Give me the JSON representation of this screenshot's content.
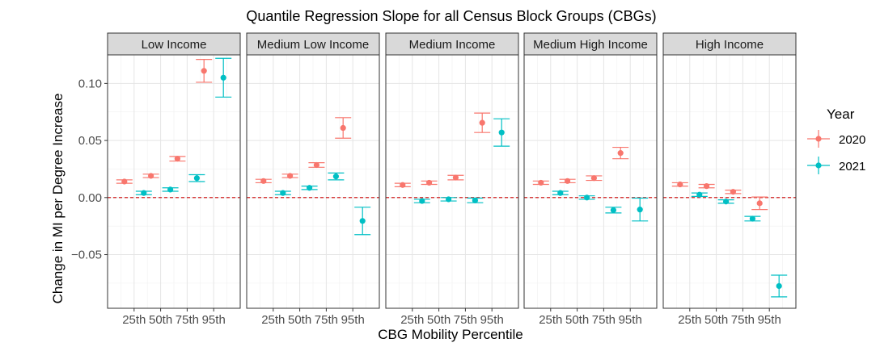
{
  "chart_data": {
    "type": "scatter",
    "title": "Quantile Regression Slope for all Census Block Groups (CBGs)",
    "xlabel": "CBG Mobility Percentile",
    "ylabel": "Change in MI per Degree Increase",
    "categories": [
      "25th",
      "50th",
      "75th",
      "95th"
    ],
    "y_ticks": [
      -0.05,
      0.0,
      0.05,
      0.1
    ],
    "y_tick_labels": [
      "−0.05",
      "0.00",
      "0.05",
      "0.10"
    ],
    "ylim": [
      -0.097,
      0.125
    ],
    "reference_line": 0,
    "grid": true,
    "legend": {
      "title": "Year",
      "position": "right",
      "entries": [
        {
          "label": "2020",
          "color": "#F8766D"
        },
        {
          "label": "2021",
          "color": "#00BFC4"
        }
      ]
    },
    "panels": [
      {
        "label": "Low Income",
        "series": [
          {
            "name": "2020",
            "values": [
              0.014,
              0.019,
              0.034,
              0.111
            ],
            "lower": [
              0.0125,
              0.0175,
              0.032,
              0.101
            ],
            "upper": [
              0.0155,
              0.0205,
              0.036,
              0.121
            ]
          },
          {
            "name": "2021",
            "values": [
              0.004,
              0.007,
              0.017,
              0.105
            ],
            "lower": [
              0.0025,
              0.0055,
              0.014,
              0.088
            ],
            "upper": [
              0.0055,
              0.0085,
              0.02,
              0.122
            ]
          }
        ]
      },
      {
        "label": "Medium Low Income",
        "series": [
          {
            "name": "2020",
            "values": [
              0.0145,
              0.019,
              0.0285,
              0.061
            ],
            "lower": [
              0.013,
              0.0175,
              0.0265,
              0.052
            ],
            "upper": [
              0.016,
              0.0205,
              0.0305,
              0.07
            ]
          },
          {
            "name": "2021",
            "values": [
              0.004,
              0.0085,
              0.0185,
              -0.0205
            ],
            "lower": [
              0.0025,
              0.007,
              0.0155,
              -0.0325
            ],
            "upper": [
              0.0055,
              0.01,
              0.0215,
              -0.0085
            ]
          }
        ]
      },
      {
        "label": "Medium Income",
        "series": [
          {
            "name": "2020",
            "values": [
              0.011,
              0.013,
              0.0175,
              0.0655
            ],
            "lower": [
              0.0095,
              0.0115,
              0.0155,
              0.057
            ],
            "upper": [
              0.0125,
              0.0145,
              0.0195,
              0.074
            ]
          },
          {
            "name": "2021",
            "values": [
              -0.003,
              -0.0015,
              -0.0025,
              0.057
            ],
            "lower": [
              -0.0045,
              -0.003,
              -0.0045,
              0.045
            ],
            "upper": [
              -0.0015,
              0.0,
              -0.0005,
              0.069
            ]
          }
        ]
      },
      {
        "label": "Medium High Income",
        "series": [
          {
            "name": "2020",
            "values": [
              0.013,
              0.0145,
              0.017,
              0.039
            ],
            "lower": [
              0.0115,
              0.013,
              0.015,
              0.034
            ],
            "upper": [
              0.0145,
              0.016,
              0.019,
              0.044
            ]
          },
          {
            "name": "2021",
            "values": [
              0.004,
              0.0,
              -0.011,
              -0.0105
            ],
            "lower": [
              0.0025,
              -0.0015,
              -0.0135,
              -0.0205
            ],
            "upper": [
              0.0055,
              0.0015,
              -0.0085,
              -0.0005
            ]
          }
        ]
      },
      {
        "label": "High Income",
        "series": [
          {
            "name": "2020",
            "values": [
              0.0115,
              0.01,
              0.005,
              -0.005
            ],
            "lower": [
              0.01,
              0.0085,
              0.0035,
              -0.0105
            ],
            "upper": [
              0.013,
              0.0115,
              0.0065,
              0.0005
            ]
          },
          {
            "name": "2021",
            "values": [
              0.0025,
              -0.0035,
              -0.0185,
              -0.0775
            ],
            "lower": [
              0.001,
              -0.005,
              -0.0205,
              -0.087
            ],
            "upper": [
              0.004,
              -0.002,
              -0.0165,
              -0.068
            ]
          }
        ]
      }
    ]
  }
}
